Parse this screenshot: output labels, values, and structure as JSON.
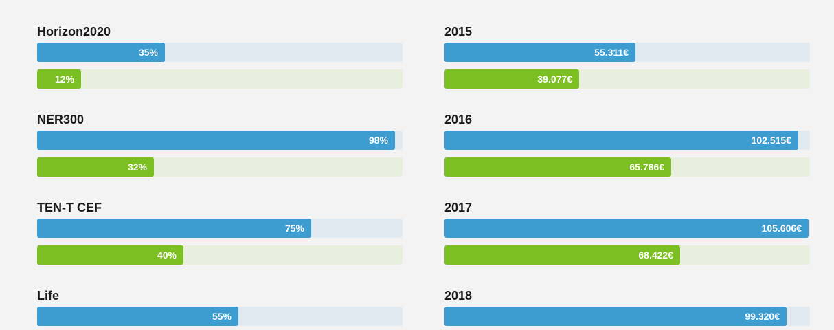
{
  "colors": {
    "blue": "#3d9dd1",
    "green": "#7cbf22",
    "blue_track": "#e1e9f0",
    "green_track": "#e9efdf"
  },
  "chart_data": [
    {
      "type": "bar",
      "orientation": "horizontal",
      "categories": [
        "Horizon2020",
        "NER300",
        "TEN-T CEF",
        "Life"
      ],
      "series": [
        {
          "color": "#3d9dd1",
          "values": [
            35,
            98,
            75,
            55
          ],
          "labels": [
            "35%",
            "98%",
            "75%",
            "55%"
          ]
        },
        {
          "color": "#7cbf22",
          "values": [
            12,
            32,
            40,
            null
          ],
          "labels": [
            "12%",
            "32%",
            "40%",
            ""
          ]
        }
      ],
      "xlim": [
        0,
        100
      ]
    },
    {
      "type": "bar",
      "orientation": "horizontal",
      "categories": [
        "2015",
        "2016",
        "2017",
        "2018"
      ],
      "series": [
        {
          "color": "#3d9dd1",
          "values": [
            55311,
            102515,
            105606,
            99320
          ],
          "labels": [
            "55.311€",
            "102.515€",
            "105.606€",
            "99.320€"
          ]
        },
        {
          "color": "#7cbf22",
          "values": [
            39077,
            65786,
            68422,
            null
          ],
          "labels": [
            "39.077€",
            "65.786€",
            "68.422€",
            ""
          ]
        }
      ],
      "xlim": [
        0,
        106000
      ]
    }
  ]
}
